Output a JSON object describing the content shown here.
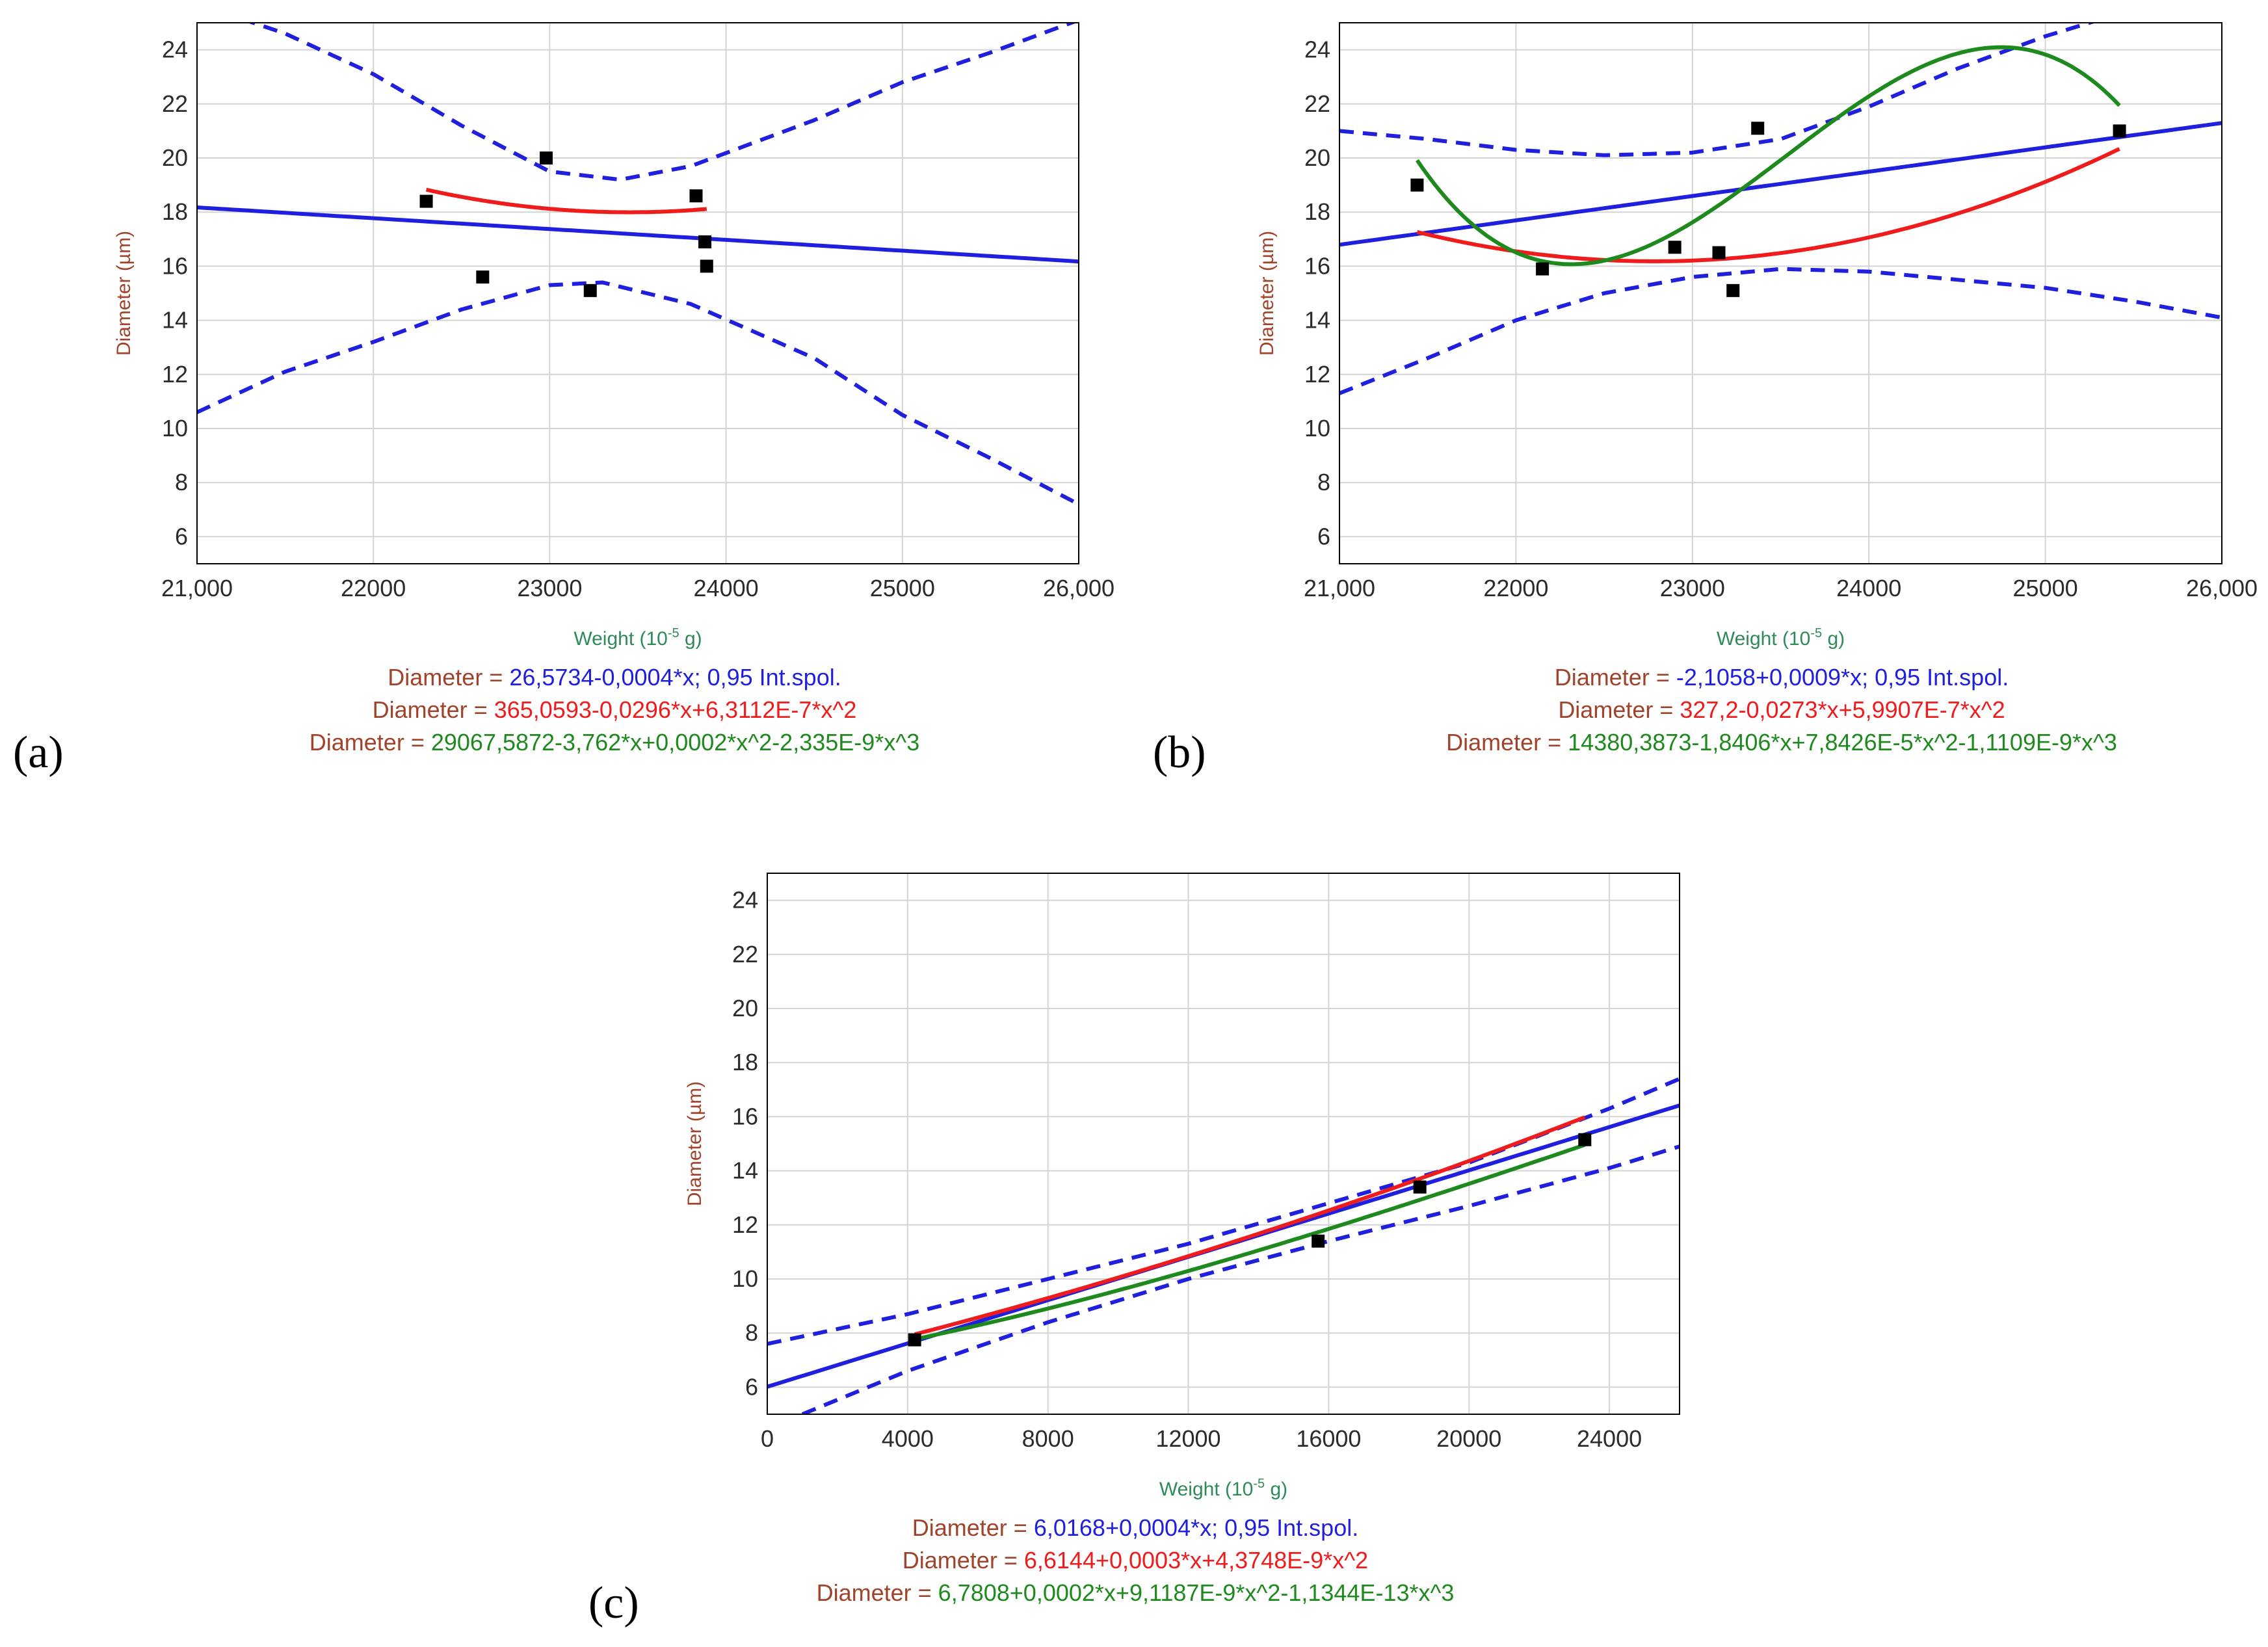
{
  "chart_data": [
    {
      "panel_label": "(a)",
      "type": "scatter",
      "xlabel": "Weight (10",
      "xlabel_sup": "-5",
      "xlabel_unit": " g)",
      "ylabel": "Diameter (µm)",
      "xlim": [
        21000,
        26000
      ],
      "ylim": [
        5,
        25
      ],
      "x_ticks": [
        21000,
        22000,
        23000,
        24000,
        25000,
        26000
      ],
      "x_tick_labels": [
        "21,000",
        "22000",
        "23000",
        "24000",
        "25000",
        "26,000"
      ],
      "y_ticks": [
        6,
        8,
        10,
        12,
        14,
        16,
        18,
        20,
        22,
        24
      ],
      "points": [
        [
          22300,
          18.4
        ],
        [
          22620,
          15.6
        ],
        [
          22980,
          20.0
        ],
        [
          23230,
          15.1
        ],
        [
          23830,
          18.6
        ],
        [
          23880,
          16.9
        ],
        [
          23890,
          16.0
        ]
      ],
      "fit_range": [
        22300,
        23890
      ],
      "fits": [
        {
          "name": "linear",
          "color": "#1f1fdd",
          "coeffs": [
            26.5734,
            -0.0004
          ],
          "extend": true
        },
        {
          "name": "quadratic",
          "color": "#ee1c1c",
          "coeffs": [
            365.0593,
            -0.0296,
            6.3112e-07
          ]
        },
        {
          "name": "cubic",
          "color": "#1e8a1e",
          "coeffs": [
            29067.5872,
            -3.762,
            0.0002,
            -2.335e-09
          ]
        }
      ],
      "confidence_band": {
        "level": 0.95,
        "upper": [
          [
            21000,
            25.7
          ],
          [
            21500,
            24.6
          ],
          [
            22000,
            23.1
          ],
          [
            22500,
            21.2
          ],
          [
            23000,
            19.5
          ],
          [
            23400,
            19.2
          ],
          [
            23800,
            19.7
          ],
          [
            24500,
            21.4
          ],
          [
            25000,
            22.8
          ],
          [
            25500,
            23.9
          ],
          [
            26000,
            25.1
          ]
        ],
        "lower": [
          [
            21000,
            10.6
          ],
          [
            21500,
            12.1
          ],
          [
            22000,
            13.2
          ],
          [
            22500,
            14.4
          ],
          [
            23000,
            15.3
          ],
          [
            23300,
            15.4
          ],
          [
            23800,
            14.6
          ],
          [
            24500,
            12.6
          ],
          [
            25000,
            10.5
          ],
          [
            25500,
            8.9
          ],
          [
            26000,
            7.2
          ]
        ]
      },
      "equations": [
        {
          "prefix": "Diameter",
          "sep": " = ",
          "text": "26,5734-0,0004*x; 0,95 Int.spol.",
          "color": "#1f1fdd"
        },
        {
          "prefix": "Diameter",
          "sep": " = ",
          "text": "365,0593-0,0296*x+6,3112E-7*x^2",
          "color": "#ee1c1c"
        },
        {
          "prefix": "Diameter",
          "sep": " = ",
          "text": "29067,5872-3,762*x+0,0002*x^2-2,335E-9*x^3",
          "color": "#1e8a1e"
        }
      ],
      "prefix_color": "#a0432a"
    },
    {
      "panel_label": "(b)",
      "type": "scatter",
      "xlabel": "Weight (10",
      "xlabel_sup": "-5",
      "xlabel_unit": " g)",
      "ylabel": "Diameter (µm)",
      "xlim": [
        21000,
        26000
      ],
      "ylim": [
        5,
        25
      ],
      "x_ticks": [
        21000,
        22000,
        23000,
        24000,
        25000,
        26000
      ],
      "x_tick_labels": [
        "21,000",
        "22000",
        "23000",
        "24000",
        "25000",
        "26,000"
      ],
      "y_ticks": [
        6,
        8,
        10,
        12,
        14,
        16,
        18,
        20,
        22,
        24
      ],
      "points": [
        [
          21440,
          19.0
        ],
        [
          22150,
          15.9
        ],
        [
          22900,
          16.7
        ],
        [
          23150,
          16.5
        ],
        [
          23230,
          15.1
        ],
        [
          23370,
          21.1
        ],
        [
          25420,
          21.0
        ]
      ],
      "fit_range": [
        21440,
        25420
      ],
      "fits": [
        {
          "name": "linear",
          "color": "#1f1fdd",
          "coeffs": [
            -2.1058,
            0.0009
          ],
          "extend": true
        },
        {
          "name": "quadratic",
          "color": "#ee1c1c",
          "coeffs": [
            327.2,
            -0.0273,
            5.9907e-07
          ]
        },
        {
          "name": "cubic",
          "color": "#1e8a1e",
          "coeffs": [
            14380.3873,
            -1.8406,
            7.8426e-05,
            -1.1109e-09
          ]
        }
      ],
      "confidence_band": {
        "level": 0.95,
        "upper": [
          [
            21000,
            21.0
          ],
          [
            21500,
            20.7
          ],
          [
            22000,
            20.3
          ],
          [
            22500,
            20.1
          ],
          [
            23000,
            20.2
          ],
          [
            23500,
            20.7
          ],
          [
            24000,
            21.9
          ],
          [
            24500,
            23.3
          ],
          [
            25000,
            24.5
          ],
          [
            25400,
            25.3
          ]
        ],
        "lower": [
          [
            21000,
            11.3
          ],
          [
            21500,
            12.6
          ],
          [
            22000,
            14.0
          ],
          [
            22500,
            15.0
          ],
          [
            23000,
            15.6
          ],
          [
            23500,
            15.9
          ],
          [
            24000,
            15.8
          ],
          [
            24500,
            15.5
          ],
          [
            25000,
            15.2
          ],
          [
            25500,
            14.7
          ],
          [
            26000,
            14.1
          ]
        ]
      },
      "equations": [
        {
          "prefix": "Diameter",
          "sep": " = ",
          "text": "-2,1058+0,0009*x; 0,95 Int.spol.",
          "color": "#1f1fdd"
        },
        {
          "prefix": "Diameter",
          "sep": " = ",
          "text": "327,2-0,0273*x+5,9907E-7*x^2",
          "color": "#ee1c1c"
        },
        {
          "prefix": "Diameter",
          "sep": " = ",
          "text": "14380,3873-1,8406*x+7,8426E-5*x^2-1,1109E-9*x^3",
          "color": "#1e8a1e"
        }
      ],
      "prefix_color": "#a0432a"
    },
    {
      "panel_label": "(c)",
      "type": "scatter",
      "xlabel": "Weight (10",
      "xlabel_sup": "-5",
      "xlabel_unit": " g)",
      "ylabel": "Diameter (µm)",
      "xlim": [
        0,
        26000
      ],
      "ylim": [
        5,
        25
      ],
      "x_ticks": [
        0,
        4000,
        8000,
        12000,
        16000,
        20000,
        24000
      ],
      "x_tick_labels": [
        "0",
        "4000",
        "8000",
        "12000",
        "16000",
        "20000",
        "24000"
      ],
      "y_ticks": [
        6,
        8,
        10,
        12,
        14,
        16,
        18,
        20,
        22,
        24
      ],
      "points": [
        [
          4200,
          7.75
        ],
        [
          15700,
          11.4
        ],
        [
          18600,
          13.4
        ],
        [
          23300,
          15.15
        ]
      ],
      "fit_range": [
        4200,
        23300
      ],
      "fits": [
        {
          "name": "linear",
          "color": "#1f1fdd",
          "coeffs": [
            6.0168,
            0.0004
          ],
          "extend": true
        },
        {
          "name": "quadratic",
          "color": "#ee1c1c",
          "coeffs": [
            6.6144,
            0.0003,
            4.3748e-09
          ]
        },
        {
          "name": "cubic",
          "color": "#1e8a1e",
          "coeffs": [
            6.7808,
            0.0002,
            9.1187e-09,
            -1.1344e-13
          ]
        }
      ],
      "confidence_band": {
        "level": 0.95,
        "upper": [
          [
            0,
            7.6
          ],
          [
            4000,
            8.7
          ],
          [
            8000,
            10.0
          ],
          [
            12000,
            11.3
          ],
          [
            16000,
            12.8
          ],
          [
            20000,
            14.3
          ],
          [
            24000,
            16.3
          ],
          [
            26000,
            17.4
          ]
        ],
        "lower": [
          [
            1000,
            5.0
          ],
          [
            4000,
            6.6
          ],
          [
            8000,
            8.4
          ],
          [
            12000,
            10.0
          ],
          [
            16000,
            11.4
          ],
          [
            20000,
            12.7
          ],
          [
            24000,
            14.1
          ],
          [
            26000,
            14.9
          ]
        ]
      },
      "equations": [
        {
          "prefix": "Diameter",
          "sep": " = ",
          "text": "6,0168+0,0004*x; 0,95 Int.spol.",
          "color": "#1f1fdd"
        },
        {
          "prefix": "Diameter",
          "sep": " = ",
          "text": "6,6144+0,0003*x+4,3748E-9*x^2",
          "color": "#ee1c1c"
        },
        {
          "prefix": "Diameter",
          "sep": " = ",
          "text": "6,7808+0,0002*x+9,1187E-9*x^2-1,1344E-13*x^3",
          "color": "#1e8a1e"
        }
      ],
      "prefix_color": "#a0432a"
    }
  ]
}
